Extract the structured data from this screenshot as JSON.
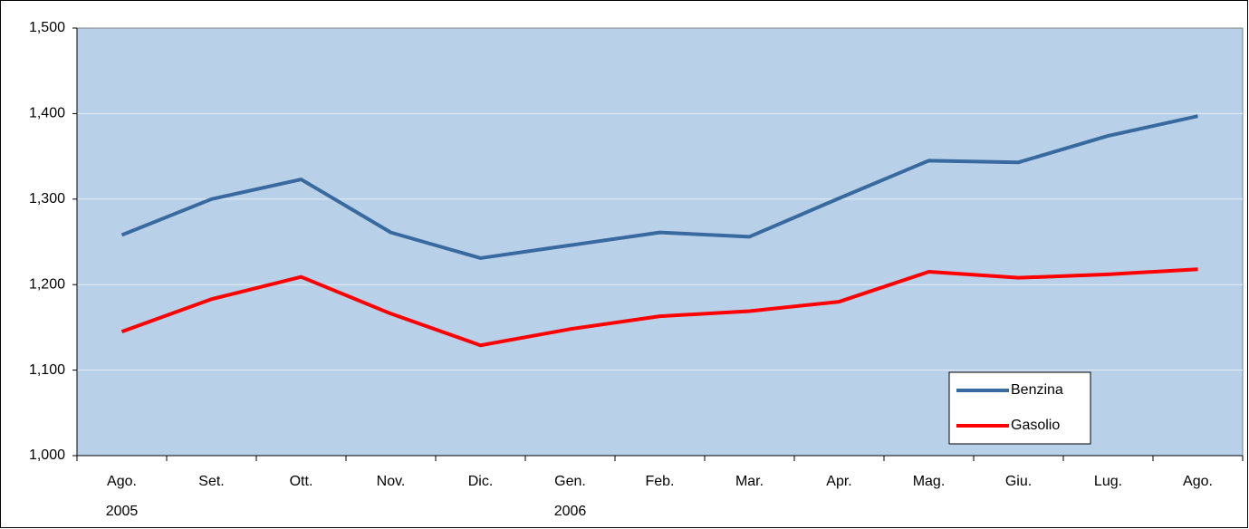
{
  "chart_data": {
    "type": "line",
    "categories": [
      "Ago.",
      "Set.",
      "Ott.",
      "Nov.",
      "Dic.",
      "Gen.",
      "Feb.",
      "Mar.",
      "Apr.",
      "Mag.",
      "Giu.",
      "Lug.",
      "Ago."
    ],
    "years": [
      "2005",
      null,
      null,
      null,
      null,
      "2006",
      null,
      null,
      null,
      null,
      null,
      null,
      null
    ],
    "series": [
      {
        "name": "Benzina",
        "color": "#386a9f",
        "values": [
          1.258,
          1.3,
          1.323,
          1.261,
          1.231,
          1.246,
          1.261,
          1.256,
          1.301,
          1.345,
          1.343,
          1.374,
          1.397
        ]
      },
      {
        "name": "Gasolio",
        "color": "#ff0000",
        "values": [
          1.145,
          1.183,
          1.209,
          1.166,
          1.129,
          1.148,
          1.163,
          1.169,
          1.18,
          1.215,
          1.208,
          1.212,
          1.218
        ]
      }
    ],
    "ylim": [
      1.0,
      1.5
    ],
    "yticks": [
      {
        "value": 1.0,
        "label": "1,000"
      },
      {
        "value": 1.1,
        "label": "1,100"
      },
      {
        "value": 1.2,
        "label": "1,200"
      },
      {
        "value": 1.3,
        "label": "1,300"
      },
      {
        "value": 1.4,
        "label": "1,400"
      },
      {
        "value": 1.5,
        "label": "1,500"
      }
    ],
    "grid": true,
    "legend": "lower-right",
    "plot_background": "#b9d1e8"
  }
}
